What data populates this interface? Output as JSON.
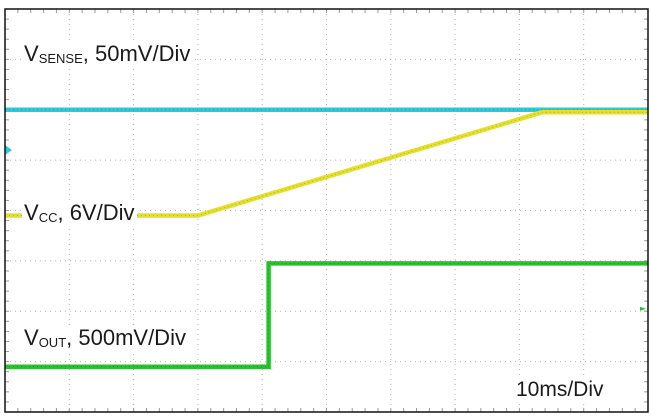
{
  "colors": {
    "background": "#ffffff",
    "border": "#111111",
    "grid": "#b4b4b4",
    "grid_tick": "#9a9a9a",
    "vsense": "#2ec8d6",
    "vcc": "#e4df2a",
    "vout": "#29c22e",
    "text": "#1a1a1a"
  },
  "chart_data": {
    "type": "line",
    "grid": true,
    "x_divisions": 10,
    "y_divisions": 8,
    "xlim": [
      0,
      100
    ],
    "time_scale": "10ms/Div",
    "series": [
      {
        "id": "vsense",
        "name_main": "V",
        "name_sub": "SENSE",
        "scale": ", 50mV/Div",
        "color": "#2ec8d6",
        "x": [
          0,
          100
        ],
        "y_div": [
          6.0,
          6.0
        ]
      },
      {
        "id": "vcc",
        "name_main": "V",
        "name_sub": "CC",
        "scale": ", 6V/Div",
        "color": "#e4df2a",
        "x": [
          0,
          30,
          83.5,
          100
        ],
        "y_div": [
          3.9,
          3.9,
          5.95,
          5.95
        ]
      },
      {
        "id": "vout",
        "name_main": "V",
        "name_sub": "OUT",
        "scale": ", 500mV/Div",
        "color": "#29c22e",
        "x": [
          0,
          41,
          41,
          100
        ],
        "y_div": [
          0.9,
          0.9,
          2.95,
          2.95
        ]
      }
    ],
    "markers": [
      {
        "id": "ch-marker-cyan",
        "color": "#2ec8d6",
        "side": "left",
        "y_div": 5.2
      },
      {
        "id": "ch-marker-green",
        "color": "#29c22e",
        "side": "right",
        "y_div": 2.05
      }
    ]
  }
}
